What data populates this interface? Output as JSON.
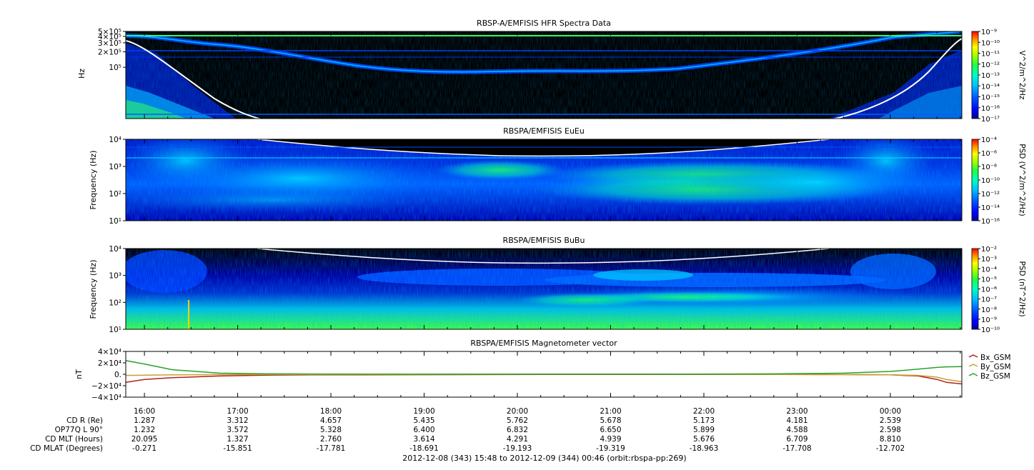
{
  "chart_data": [
    {
      "type": "heatmap",
      "title": "RBSP-A/EMFISIS  HFR Spectra Data",
      "ylabel": "Hz",
      "yscale": "log",
      "ylim": [
        10000,
        500000
      ],
      "ytick_labels": [
        "5×10⁵",
        "4×10⁵",
        "3×10⁵",
        "2×10⁵",
        "10⁵"
      ],
      "ytick_values": [
        500000,
        400000,
        300000,
        200000,
        100000
      ],
      "colorbar_label": "V^2/m^2/Hz",
      "colorbar_ticks": [
        "10⁻⁹",
        "10⁻¹⁰",
        "10⁻¹¹",
        "10⁻¹²",
        "10⁻¹³",
        "10⁻¹⁴",
        "10⁻¹⁵",
        "10⁻¹⁶",
        "10⁻¹⁷"
      ]
    },
    {
      "type": "heatmap",
      "title": "RBSPA/EMFISIS  EuEu",
      "ylabel": "Frequency (Hz)",
      "yscale": "log",
      "ylim": [
        10,
        10000
      ],
      "ytick_labels": [
        "10⁴",
        "10³",
        "10²",
        "10¹"
      ],
      "ytick_values": [
        10000,
        1000,
        100,
        10
      ],
      "colorbar_label": "PSD (V^2/m^2/Hz)",
      "colorbar_ticks": [
        "10⁻⁴",
        "10⁻⁶",
        "10⁻⁸",
        "10⁻¹⁰",
        "10⁻¹²",
        "10⁻¹⁴",
        "10⁻¹⁶"
      ]
    },
    {
      "type": "heatmap",
      "title": "RBSPA/EMFISIS  BuBu",
      "ylabel": "Frequency (Hz)",
      "yscale": "log",
      "ylim": [
        10,
        10000
      ],
      "ytick_labels": [
        "10⁴",
        "10³",
        "10²",
        "10¹"
      ],
      "ytick_values": [
        10000,
        1000,
        100,
        10
      ],
      "colorbar_label": "PSD (nT^2/Hz)",
      "colorbar_ticks": [
        "10⁻²",
        "10⁻³",
        "10⁻⁴",
        "10⁻⁵",
        "10⁻⁶",
        "10⁻⁷",
        "10⁻⁸",
        "10⁻⁹",
        "10⁻¹⁰"
      ]
    },
    {
      "type": "line",
      "title": "RBSPA/EMFISIS  Magnetometer vector",
      "ylabel": "nT",
      "ylim": [
        -40000,
        40000
      ],
      "ytick_labels": [
        "4×10⁴",
        "2×10⁴",
        "0.",
        "−2×10⁴",
        "−4×10⁴"
      ],
      "ytick_values": [
        40000,
        20000,
        0,
        -20000,
        -40000
      ],
      "x_hours": [
        0,
        0.2,
        0.5,
        1,
        1.5,
        2,
        3,
        4,
        5,
        6,
        7,
        7.7,
        8.2,
        8.5,
        8.7,
        8.8,
        8.97
      ],
      "series": [
        {
          "name": "Bx_GSM",
          "color": "#b22020",
          "values": [
            -14000,
            -9000,
            -6000,
            -3000,
            -1500,
            -1000,
            -800,
            -500,
            -300,
            -300,
            -400,
            -500,
            -1000,
            -3000,
            -9000,
            -14000,
            -17000
          ]
        },
        {
          "name": "By_GSM",
          "color": "#c8a030",
          "values": [
            -2000,
            -1500,
            -1000,
            -500,
            -300,
            -200,
            -200,
            -100,
            0,
            -100,
            -200,
            -500,
            -1000,
            -2000,
            -5000,
            -9000,
            -13000
          ]
        },
        {
          "name": "Bz_GSM",
          "color": "#2aa32a",
          "values": [
            24000,
            18000,
            8000,
            2000,
            800,
            500,
            300,
            200,
            200,
            300,
            800,
            2000,
            5000,
            9000,
            12000,
            13000,
            13500
          ]
        }
      ]
    }
  ],
  "time_ticks": [
    "16:00",
    "17:00",
    "18:00",
    "19:00",
    "20:00",
    "21:00",
    "22:00",
    "23:00",
    "00:00"
  ],
  "ephemeris_rows": [
    {
      "label": "CD R (Re)",
      "values": [
        "1.287",
        "3.312",
        "4.657",
        "5.435",
        "5.762",
        "5.678",
        "5.173",
        "4.181",
        "2.539"
      ]
    },
    {
      "label": "OP77Q L 90°",
      "values": [
        "1.232",
        "3.572",
        "5.328",
        "6.400",
        "6.832",
        "6.650",
        "5.899",
        "4.588",
        "2.598"
      ]
    },
    {
      "label": "CD MLT (Hours)",
      "values": [
        "20.095",
        "1.327",
        "2.760",
        "3.614",
        "4.291",
        "4.939",
        "5.676",
        "6.709",
        "8.810"
      ]
    },
    {
      "label": "CD MLAT (Degrees)",
      "values": [
        "-0.271",
        "-15.851",
        "-17.781",
        "-18.691",
        "-19.193",
        "-19.319",
        "-18.963",
        "-17.708",
        "-12.702"
      ]
    }
  ],
  "footer": "2012-12-08 (343) 15:48 to 2012-12-09 (344) 00:46 (orbit:rbspa-pp:269)",
  "time_range_hours": [
    15.8,
    24.7667
  ],
  "colors": {
    "spectrogram_background": "#000000",
    "colormap": [
      "#000090",
      "#0000ff",
      "#0060ff",
      "#00c0ff",
      "#00ffc0",
      "#20ff40",
      "#a0ff00",
      "#ffff00",
      "#ff9000",
      "#ff0000"
    ]
  }
}
